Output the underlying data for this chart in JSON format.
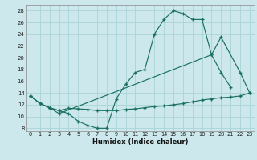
{
  "xlabel": "Humidex (Indice chaleur)",
  "bg_color": "#cce8ec",
  "grid_color": "#aad4d8",
  "line_color": "#1a7060",
  "xlim": [
    -0.5,
    23.5
  ],
  "ylim": [
    7.5,
    29
  ],
  "yticks": [
    8,
    10,
    12,
    14,
    16,
    18,
    20,
    22,
    24,
    26,
    28
  ],
  "xticks": [
    0,
    1,
    2,
    3,
    4,
    5,
    6,
    7,
    8,
    9,
    10,
    11,
    12,
    13,
    14,
    15,
    16,
    17,
    18,
    19,
    20,
    21,
    22,
    23
  ],
  "line1_x": [
    0,
    1,
    2,
    3,
    4,
    5,
    6,
    7,
    8,
    9,
    10,
    11,
    12,
    13,
    14,
    15,
    16,
    17,
    18,
    19,
    20,
    21
  ],
  "line1_y": [
    13.5,
    12.2,
    11.5,
    11.0,
    10.5,
    9.2,
    8.5,
    8.0,
    8.0,
    13.0,
    15.5,
    17.5,
    18.0,
    24.0,
    26.5,
    28.0,
    27.5,
    26.5,
    26.5,
    20.5,
    17.5,
    15.0
  ],
  "line2_x": [
    0,
    1,
    2,
    3,
    19,
    20,
    22,
    23
  ],
  "line2_y": [
    13.5,
    12.2,
    11.5,
    10.5,
    20.5,
    23.5,
    17.5,
    14.0
  ],
  "line3_x": [
    0,
    1,
    2,
    3,
    4,
    5,
    6,
    7,
    8,
    9,
    10,
    11,
    12,
    13,
    14,
    15,
    16,
    17,
    18,
    19,
    20,
    21,
    22,
    23
  ],
  "line3_y": [
    13.5,
    12.2,
    11.5,
    11.0,
    11.4,
    11.3,
    11.2,
    11.0,
    11.0,
    11.0,
    11.2,
    11.3,
    11.5,
    11.7,
    11.8,
    12.0,
    12.2,
    12.5,
    12.8,
    13.0,
    13.2,
    13.3,
    13.5,
    14.0
  ]
}
